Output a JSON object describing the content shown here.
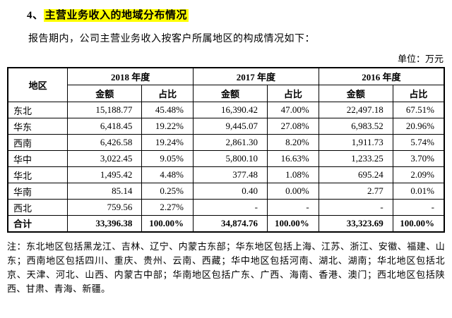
{
  "colors": {
    "highlight": "#ffff00",
    "border": "#000000"
  },
  "heading": {
    "prefix": "4、",
    "highlight": "主营业务收入的地域分布情况"
  },
  "intro": "报告期内，公司主营业务收入按客户所属地区的构成情况如下：",
  "unit_label": "单位：万元",
  "table": {
    "region_header": "地区",
    "year_headers": [
      "2018 年度",
      "2017 年度",
      "2016 年度"
    ],
    "sub_headers": [
      "金额",
      "占比"
    ],
    "rows": [
      [
        "东北",
        "15,188.77",
        "45.48%",
        "16,390.42",
        "47.00%",
        "22,497.18",
        "67.51%"
      ],
      [
        "华东",
        "6,418.45",
        "19.22%",
        "9,445.07",
        "27.08%",
        "6,983.52",
        "20.96%"
      ],
      [
        "西南",
        "6,426.58",
        "19.24%",
        "2,861.30",
        "8.20%",
        "1,911.73",
        "5.74%"
      ],
      [
        "华中",
        "3,022.45",
        "9.05%",
        "5,800.10",
        "16.63%",
        "1,233.25",
        "3.70%"
      ],
      [
        "华北",
        "1,495.42",
        "4.48%",
        "377.48",
        "1.08%",
        "695.24",
        "2.09%"
      ],
      [
        "华南",
        "85.14",
        "0.25%",
        "0.40",
        "0.00%",
        "2.77",
        "0.01%"
      ],
      [
        "西北",
        "759.56",
        "2.27%",
        "-",
        "-",
        "-",
        "-"
      ]
    ],
    "total_row": [
      "合计",
      "33,396.38",
      "100.00%",
      "34,874.76",
      "100.00%",
      "33,323.69",
      "100.00%"
    ]
  },
  "note": "注：东北地区包括黑龙江、吉林、辽宁、内蒙古东部；华东地区包括上海、江苏、浙江、安徽、福建、山东；西南地区包括四川、重庆、贵州、云南、西藏；华中地区包括河南、湖北、湖南；华北地区包括北京、天津、河北、山西、内蒙古中部；华南地区包括广东、广西、海南、香港、澳门；西北地区包括陕西、甘肃、青海、新疆。"
}
